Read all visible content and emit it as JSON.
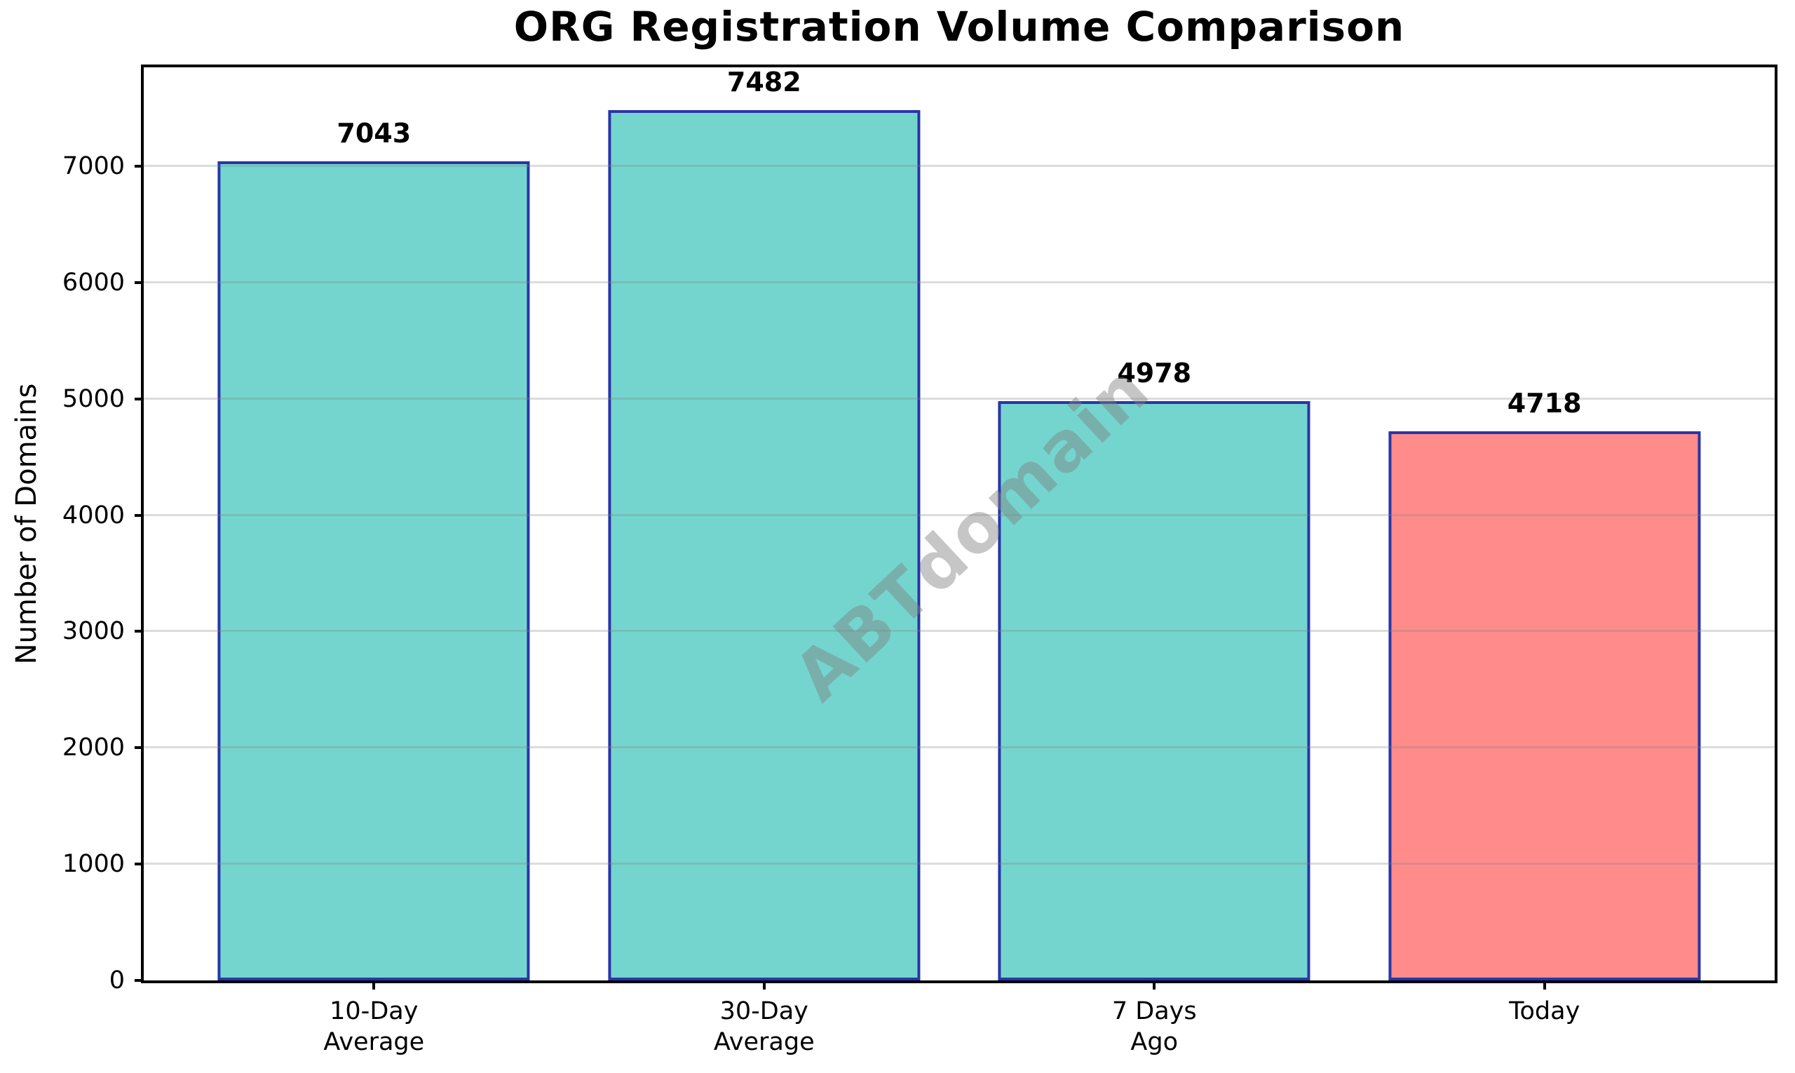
{
  "figure": {
    "background_color": "#FFFFFF"
  },
  "chart_data": {
    "type": "bar",
    "title": "ORG Registration Volume Comparison",
    "xlabel": "",
    "ylabel": "Number of Domains",
    "categories": [
      "10-Day\nAverage",
      "30-Day\nAverage",
      "7 Days\nAgo",
      "Today"
    ],
    "values": [
      7043,
      7482,
      4978,
      4718
    ],
    "data_labels": [
      "7043",
      "7482",
      "4978",
      "4718"
    ],
    "bar_fill_colors": [
      "#74D5CE",
      "#74D5CE",
      "#74D5CE",
      "#FF8B8B"
    ],
    "bar_edge_color": "#2A35A8",
    "yticks": [
      0,
      1000,
      2000,
      3000,
      4000,
      5000,
      6000,
      7000
    ],
    "ylim": [
      0,
      7850
    ],
    "grid": "horizontal",
    "grid_color": "#808080",
    "axis_color": "#000000",
    "legend_position": "none",
    "watermark": "ABTdomain"
  }
}
